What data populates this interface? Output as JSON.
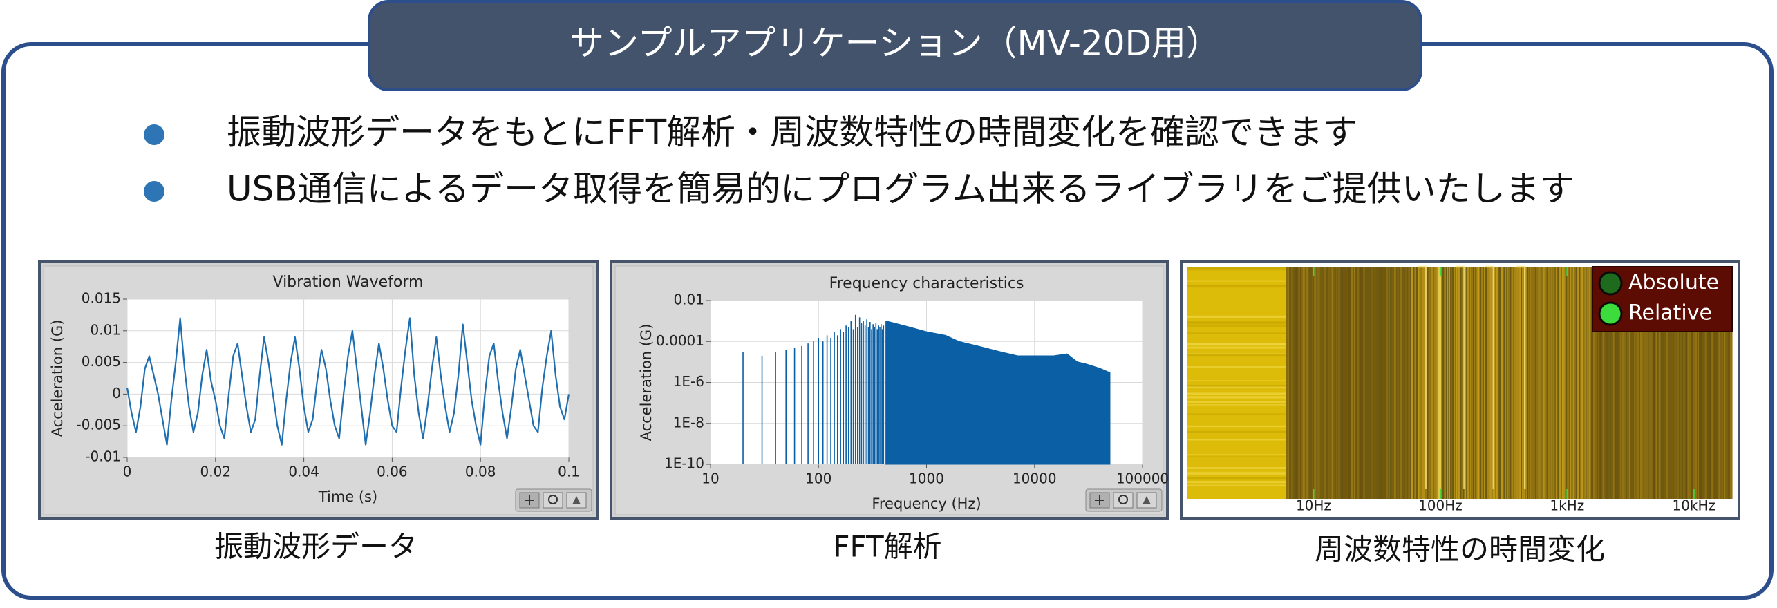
{
  "header": {
    "title": "サンプルアプリケーション（MV-20D用）"
  },
  "bullets": [
    "振動波形データをもとにFFT解析・周波数特性の時間変化を確認できます",
    "USB通信によるデータ取得を簡易的にプログラム出来るライブラリをご提供いたします"
  ],
  "panels": [
    {
      "caption": "振動波形データ",
      "chart": {
        "type": "line",
        "title": "Vibration Waveform",
        "x_label": "Time (s)",
        "y_label": "Acceleration (G)",
        "color": "#1f6fb0",
        "grid": true,
        "xlim": [
          0,
          0.1
        ],
        "xticks": [
          0,
          0.02,
          0.04,
          0.06,
          0.08,
          0.1
        ],
        "ylim": [
          -0.01,
          0.015
        ],
        "yticks": [
          -0.01,
          -0.005,
          0,
          0.005,
          0.01,
          0.015
        ],
        "x": [
          0,
          0.001,
          0.002,
          0.003,
          0.004,
          0.005,
          0.006,
          0.007,
          0.008,
          0.009,
          0.01,
          0.011,
          0.012,
          0.013,
          0.014,
          0.015,
          0.016,
          0.017,
          0.018,
          0.019,
          0.02,
          0.021,
          0.022,
          0.023,
          0.024,
          0.025,
          0.026,
          0.027,
          0.028,
          0.029,
          0.03,
          0.031,
          0.032,
          0.033,
          0.034,
          0.035,
          0.036,
          0.037,
          0.038,
          0.039,
          0.04,
          0.041,
          0.042,
          0.043,
          0.044,
          0.045,
          0.046,
          0.047,
          0.048,
          0.049,
          0.05,
          0.051,
          0.052,
          0.053,
          0.054,
          0.055,
          0.056,
          0.057,
          0.058,
          0.059,
          0.06,
          0.061,
          0.062,
          0.063,
          0.064,
          0.065,
          0.066,
          0.067,
          0.068,
          0.069,
          0.07,
          0.071,
          0.072,
          0.073,
          0.074,
          0.075,
          0.076,
          0.077,
          0.078,
          0.079,
          0.08,
          0.081,
          0.082,
          0.083,
          0.084,
          0.085,
          0.086,
          0.087,
          0.088,
          0.089,
          0.09,
          0.091,
          0.092,
          0.093,
          0.094,
          0.095,
          0.096,
          0.097,
          0.098,
          0.099,
          0.1
        ],
        "values": [
          0.001,
          -0.003,
          -0.006,
          -0.002,
          0.004,
          0.006,
          0.003,
          0,
          -0.004,
          -0.008,
          -0.001,
          0.005,
          0.012,
          0.004,
          -0.002,
          -0.006,
          -0.003,
          0.003,
          0.007,
          0.002,
          -0.001,
          -0.005,
          -0.007,
          0,
          0.006,
          0.008,
          0.003,
          -0.002,
          -0.006,
          -0.004,
          0.003,
          0.009,
          0.005,
          0,
          -0.005,
          -0.008,
          -0.001,
          0.005,
          0.009,
          0.004,
          -0.002,
          -0.006,
          -0.004,
          0.002,
          0.007,
          0.004,
          -0.001,
          -0.005,
          -0.007,
          0,
          0.006,
          0.01,
          0.004,
          -0.002,
          -0.008,
          -0.003,
          0.003,
          0.008,
          0.004,
          -0.001,
          -0.005,
          -0.006,
          0.001,
          0.007,
          0.012,
          0.003,
          -0.003,
          -0.007,
          -0.002,
          0.004,
          0.009,
          0.003,
          -0.002,
          -0.006,
          -0.003,
          0.003,
          0.011,
          0.005,
          -0.001,
          -0.005,
          -0.008,
          0,
          0.006,
          0.008,
          0.002,
          -0.003,
          -0.007,
          -0.002,
          0.004,
          0.007,
          0.003,
          -0.001,
          -0.005,
          -0.006,
          0.001,
          0.006,
          0.01,
          0.003,
          -0.002,
          -0.004,
          0
        ]
      }
    },
    {
      "caption": "FFT解析",
      "chart": {
        "type": "stem",
        "title": "Frequency characteristics",
        "x_label": "Frequency (Hz)",
        "y_label": "Acceleration (G)",
        "color": "#0b5fa5",
        "grid": true,
        "x_log": true,
        "y_log": true,
        "xlim": [
          10,
          100000
        ],
        "xticks": [
          10,
          100,
          1000,
          10000,
          100000
        ],
        "ylim": [
          1e-10,
          0.01
        ],
        "yticks": [
          0.01,
          0.0001,
          {
            "value": 1e-06,
            "label": "1E-6"
          },
          {
            "value": 1e-08,
            "label": "1E-8"
          },
          {
            "value": 1e-10,
            "label": "1E-10"
          }
        ],
        "x": [
          20,
          30,
          40,
          50,
          60,
          70,
          80,
          90,
          100,
          110,
          120,
          130,
          140,
          150,
          160,
          170,
          180,
          190,
          200,
          210,
          220,
          230,
          240,
          250,
          260,
          270,
          280,
          290,
          300,
          310,
          320,
          330,
          340,
          350,
          360,
          370,
          380,
          390,
          400
        ],
        "values": [
          3e-05,
          2e-05,
          3e-05,
          4e-05,
          5e-05,
          6e-05,
          8e-05,
          0.0001,
          0.00015,
          0.0001,
          0.0002,
          0.00015,
          0.0003,
          0.0002,
          0.0004,
          0.0003,
          0.0006,
          0.0005,
          0.001,
          0.0004,
          0.002,
          0.0005,
          0.0015,
          0.0008,
          0.001,
          0.0006,
          0.0012,
          0.0005,
          0.0009,
          0.0004,
          0.0007,
          0.0005,
          0.0008,
          0.0004,
          0.0006,
          0.0005,
          0.0007,
          0.0004,
          0.0006
        ],
        "envelope": {
          "x": [
            420,
            500,
            700,
            1000,
            1500,
            2000,
            3000,
            5000,
            7000,
            10000,
            15000,
            20000,
            25000,
            30000,
            40000,
            50000
          ],
          "values": [
            0.001,
            0.0008,
            0.0005,
            0.0003,
            0.0002,
            0.0001,
            6e-05,
            3e-05,
            2e-05,
            2e-05,
            2e-05,
            2.5e-05,
            1e-05,
            8e-06,
            5e-06,
            3e-06
          ]
        }
      }
    },
    {
      "caption": "周波数特性の時間変化",
      "chart": {
        "type": "spectrogram",
        "x_log": true,
        "xlim": [
          1,
          20000
        ],
        "xticks": [
          {
            "value": 10,
            "label": "10Hz"
          },
          {
            "value": 100,
            "label": "100Hz"
          },
          {
            "value": 1000,
            "label": "1kHz"
          },
          {
            "value": 10000,
            "label": "10kHz"
          }
        ],
        "legend_position": "upper right",
        "legend": [
          {
            "name": "Absolute",
            "color": "#1e6b1e"
          },
          {
            "name": "Relative",
            "color": "#3ddc3d"
          }
        ]
      }
    }
  ]
}
